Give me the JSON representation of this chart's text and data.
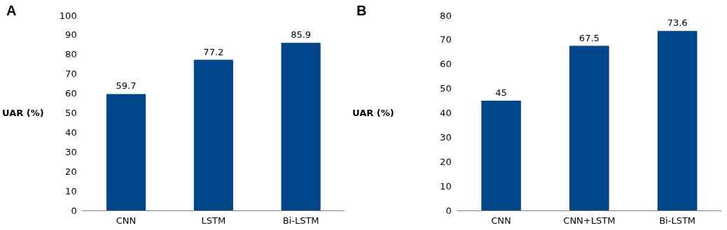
{
  "chart_data": [
    {
      "type": "bar",
      "title": "A",
      "ylabel": "UAR (%)",
      "categories": [
        "CNN",
        "LSTM",
        "Bi-LSTM"
      ],
      "values": [
        59.7,
        77.2,
        85.9
      ],
      "color": "#00468b",
      "ylim": [
        0,
        100
      ],
      "yticks": [
        0,
        10,
        20,
        30,
        40,
        50,
        60,
        70,
        80,
        90,
        100
      ],
      "grid": false,
      "data_labels": true
    },
    {
      "type": "bar",
      "title": "B",
      "ylabel": "UAR (%)",
      "categories": [
        "CNN",
        "CNN+LSTM",
        "Bi-LSTM"
      ],
      "values": [
        45,
        67.5,
        73.6
      ],
      "color": "#00468b",
      "ylim": [
        0,
        80
      ],
      "yticks": [
        0,
        10,
        20,
        30,
        40,
        50,
        60,
        70,
        80
      ],
      "grid": false,
      "data_labels": true
    }
  ]
}
